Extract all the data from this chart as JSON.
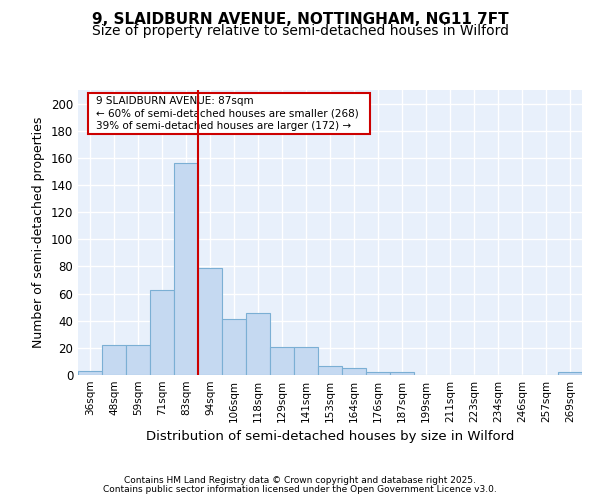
{
  "title": "9, SLAIDBURN AVENUE, NOTTINGHAM, NG11 7FT",
  "subtitle": "Size of property relative to semi-detached houses in Wilford",
  "xlabel": "Distribution of semi-detached houses by size in Wilford",
  "ylabel": "Number of semi-detached properties",
  "categories": [
    "36sqm",
    "48sqm",
    "59sqm",
    "71sqm",
    "83sqm",
    "94sqm",
    "106sqm",
    "118sqm",
    "129sqm",
    "141sqm",
    "153sqm",
    "164sqm",
    "176sqm",
    "187sqm",
    "199sqm",
    "211sqm",
    "223sqm",
    "234sqm",
    "246sqm",
    "257sqm",
    "269sqm"
  ],
  "values": [
    3,
    22,
    22,
    63,
    156,
    79,
    41,
    46,
    21,
    21,
    7,
    5,
    2,
    2,
    0,
    0,
    0,
    0,
    0,
    0,
    2
  ],
  "bar_color": "#c5d9f1",
  "bar_edge_color": "#7bafd4",
  "vline_x": 4.5,
  "vline_color": "#cc0000",
  "annotation_title": "9 SLAIDBURN AVENUE: 87sqm",
  "annotation_line1": "← 60% of semi-detached houses are smaller (268)",
  "annotation_line2": "39% of semi-detached houses are larger (172) →",
  "annotation_box_color": "#cc0000",
  "ylim": [
    0,
    210
  ],
  "yticks": [
    0,
    20,
    40,
    60,
    80,
    100,
    120,
    140,
    160,
    180,
    200
  ],
  "plot_bg_color": "#e8f0fb",
  "footer1": "Contains HM Land Registry data © Crown copyright and database right 2025.",
  "footer2": "Contains public sector information licensed under the Open Government Licence v3.0.",
  "title_fontsize": 11,
  "subtitle_fontsize": 10,
  "xlabel_fontsize": 9.5,
  "ylabel_fontsize": 9
}
